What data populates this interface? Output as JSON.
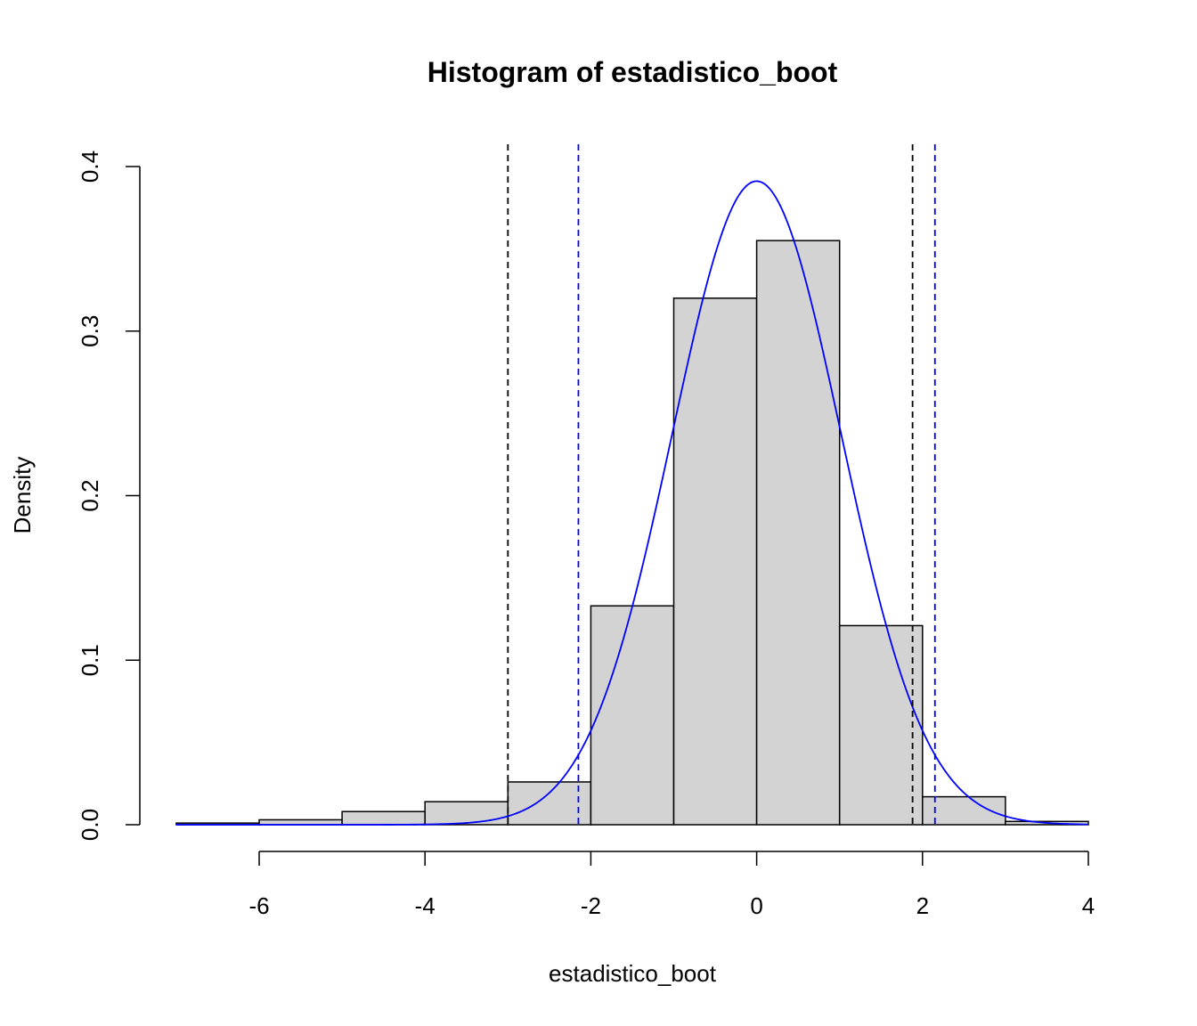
{
  "chart_data": {
    "type": "bar",
    "title": "Histogram of estadistico_boot",
    "xlabel": "estadistico_boot",
    "ylabel": "Density",
    "xlim": [
      -7,
      4
    ],
    "ylim": [
      0,
      0.4
    ],
    "x_ticks": [
      -6,
      -4,
      -2,
      0,
      2,
      4
    ],
    "y_ticks": [
      0.0,
      0.1,
      0.2,
      0.3,
      0.4
    ],
    "x_tick_labels": [
      "-6",
      "-4",
      "-2",
      "0",
      "2",
      "4"
    ],
    "y_tick_labels": [
      "0.0",
      "0.1",
      "0.2",
      "0.3",
      "0.4"
    ],
    "grid": false,
    "bins": [
      {
        "x0": -7,
        "x1": -6,
        "density": 0.001
      },
      {
        "x0": -6,
        "x1": -5,
        "density": 0.003
      },
      {
        "x0": -5,
        "x1": -4,
        "density": 0.008
      },
      {
        "x0": -4,
        "x1": -3,
        "density": 0.014
      },
      {
        "x0": -3,
        "x1": -2,
        "density": 0.026
      },
      {
        "x0": -2,
        "x1": -1,
        "density": 0.133
      },
      {
        "x0": -1,
        "x1": 0,
        "density": 0.32
      },
      {
        "x0": 0,
        "x1": 1,
        "density": 0.355
      },
      {
        "x0": 1,
        "x1": 2,
        "density": 0.121
      },
      {
        "x0": 2,
        "x1": 3,
        "density": 0.017
      },
      {
        "x0": 3,
        "x1": 4,
        "density": 0.002
      }
    ],
    "bar_fill": "#d3d3d3",
    "bar_stroke": "#000000",
    "density_curve": {
      "color": "#0000ff",
      "distribution": "normal",
      "mean": 0,
      "sd": 1.02
    },
    "vlines": [
      {
        "x": -3.0,
        "color": "#000000",
        "style": "dashed"
      },
      {
        "x": 1.88,
        "color": "#000000",
        "style": "dashed"
      },
      {
        "x": -2.15,
        "color": "#0000ff",
        "style": "dashed"
      },
      {
        "x": 2.15,
        "color": "#0000ff",
        "style": "dashed"
      }
    ]
  }
}
